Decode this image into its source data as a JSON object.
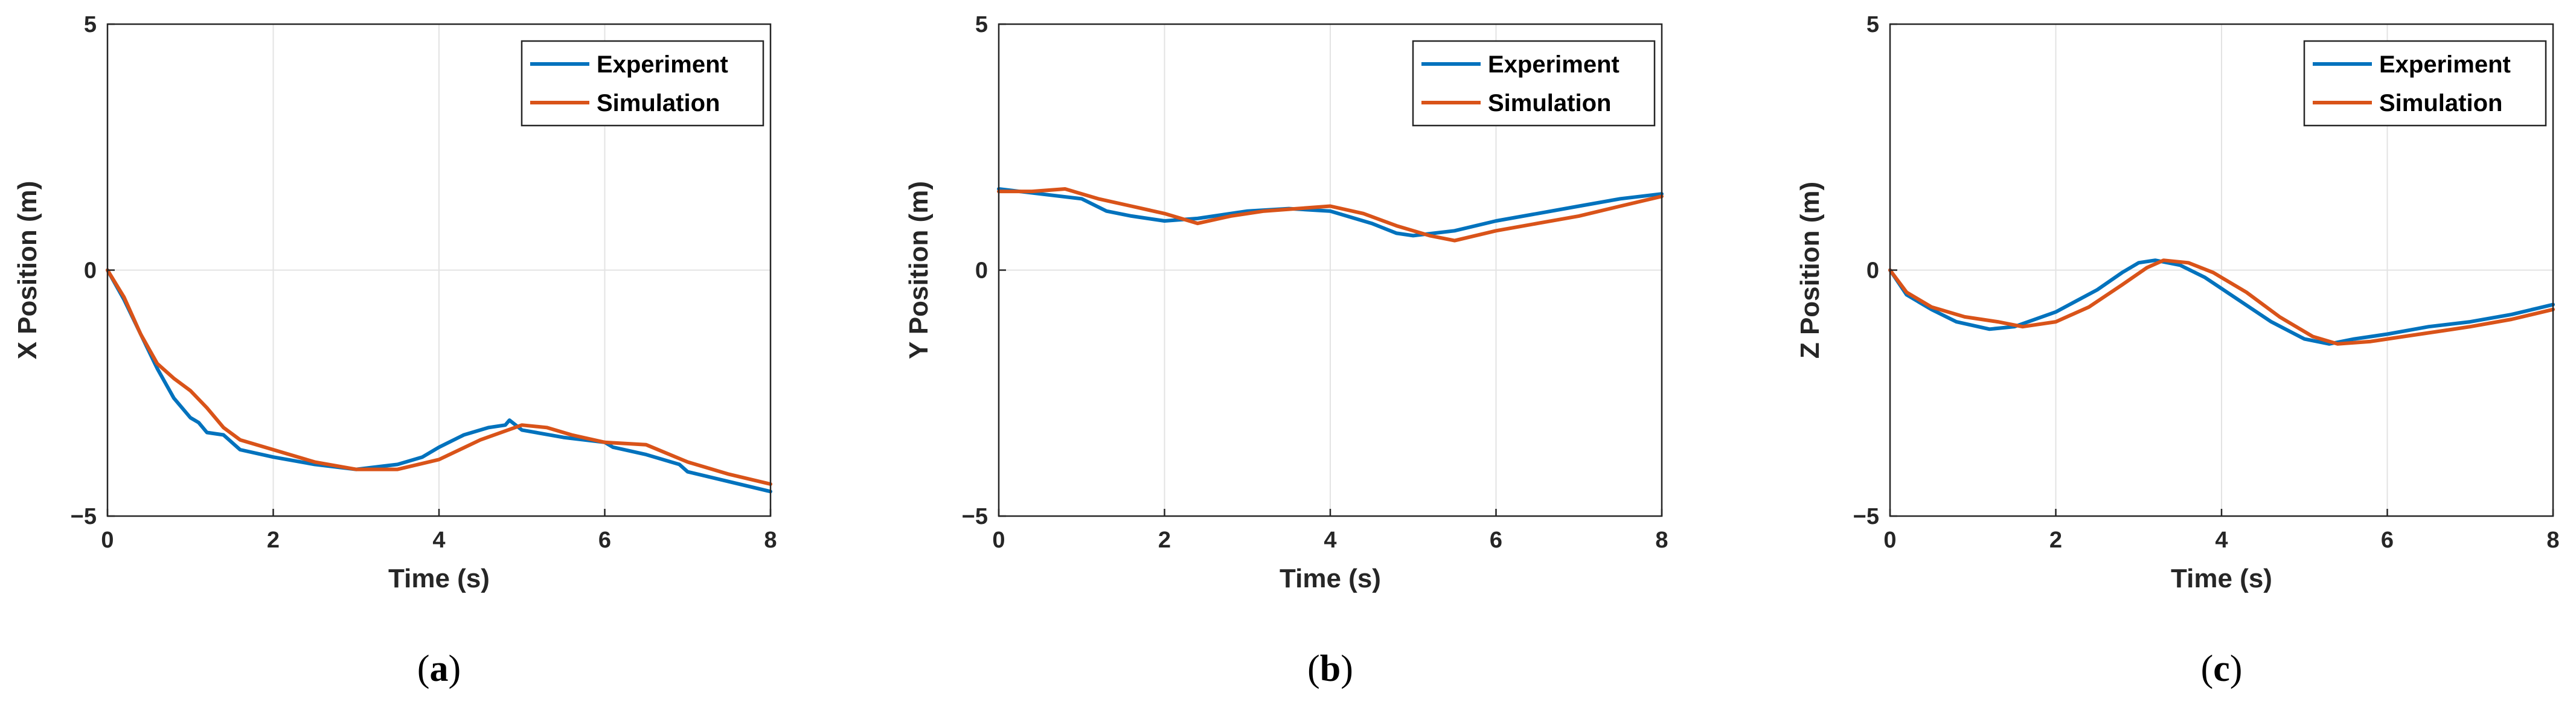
{
  "colors": {
    "experiment": "#0072BD",
    "simulation": "#D95319",
    "grid": "#e3e3e3",
    "axis": "#262626"
  },
  "chart_data": [
    {
      "type": "line",
      "caption": {
        "open": "(",
        "letter": "a",
        "close": ")"
      },
      "xlabel": "Time (s)",
      "ylabel": "X Position (m)",
      "xlim": [
        0,
        8
      ],
      "ylim": [
        -5,
        5
      ],
      "xticks": [
        0,
        2,
        4,
        6,
        8
      ],
      "xtick_labels": [
        "0",
        "2",
        "4",
        "6",
        "8"
      ],
      "yticks": [
        -5,
        0,
        5
      ],
      "ytick_labels": [
        "−5",
        "0",
        "5"
      ],
      "grid": true,
      "legend": "top-right",
      "series": [
        {
          "name": "Experiment",
          "x": [
            0,
            0.2,
            0.4,
            0.6,
            0.8,
            1.0,
            1.1,
            1.2,
            1.4,
            1.6,
            2.0,
            2.5,
            3.0,
            3.5,
            3.8,
            4.0,
            4.3,
            4.6,
            4.8,
            4.85,
            5.0,
            5.5,
            6.0,
            6.1,
            6.5,
            6.9,
            7.0,
            7.5,
            8.0
          ],
          "y": [
            0,
            -0.6,
            -1.3,
            -2.0,
            -2.6,
            -3.0,
            -3.1,
            -3.3,
            -3.35,
            -3.65,
            -3.8,
            -3.95,
            -4.05,
            -3.95,
            -3.8,
            -3.6,
            -3.35,
            -3.2,
            -3.15,
            -3.05,
            -3.25,
            -3.4,
            -3.5,
            -3.6,
            -3.75,
            -3.95,
            -4.1,
            -4.3,
            -4.5
          ]
        },
        {
          "name": "Simulation",
          "x": [
            0,
            0.2,
            0.4,
            0.6,
            0.8,
            1.0,
            1.2,
            1.4,
            1.6,
            2.0,
            2.5,
            3.0,
            3.5,
            4.0,
            4.5,
            5.0,
            5.3,
            5.6,
            6.0,
            6.5,
            7.0,
            7.5,
            8.0
          ],
          "y": [
            0,
            -0.55,
            -1.3,
            -1.9,
            -2.2,
            -2.45,
            -2.8,
            -3.2,
            -3.45,
            -3.65,
            -3.9,
            -4.05,
            -4.05,
            -3.85,
            -3.45,
            -3.15,
            -3.2,
            -3.35,
            -3.5,
            -3.55,
            -3.9,
            -4.15,
            -4.35
          ]
        }
      ]
    },
    {
      "type": "line",
      "caption": {
        "open": "(",
        "letter": "b",
        "close": ")"
      },
      "xlabel": "Time (s)",
      "ylabel": "Y Position (m)",
      "xlim": [
        0,
        8
      ],
      "ylim": [
        -5,
        5
      ],
      "xticks": [
        0,
        2,
        4,
        6,
        8
      ],
      "xtick_labels": [
        "0",
        "2",
        "4",
        "6",
        "8"
      ],
      "yticks": [
        -5,
        0,
        5
      ],
      "ytick_labels": [
        "−5",
        "0",
        "5"
      ],
      "grid": true,
      "legend": "top-right",
      "series": [
        {
          "name": "Experiment",
          "x": [
            0,
            0.5,
            1.0,
            1.3,
            1.6,
            2.0,
            2.4,
            3.0,
            3.5,
            4.0,
            4.5,
            4.8,
            5.0,
            5.5,
            6.0,
            6.5,
            7.0,
            7.5,
            8.0
          ],
          "y": [
            1.65,
            1.55,
            1.45,
            1.2,
            1.1,
            1.0,
            1.05,
            1.2,
            1.25,
            1.2,
            0.95,
            0.75,
            0.7,
            0.8,
            1.0,
            1.15,
            1.3,
            1.45,
            1.55
          ]
        },
        {
          "name": "Simulation",
          "x": [
            0,
            0.4,
            0.8,
            1.2,
            1.6,
            2.0,
            2.4,
            2.8,
            3.2,
            3.6,
            4.0,
            4.4,
            4.8,
            5.2,
            5.5,
            6.0,
            6.5,
            7.0,
            7.5,
            8.0
          ],
          "y": [
            1.6,
            1.6,
            1.65,
            1.45,
            1.3,
            1.15,
            0.95,
            1.1,
            1.2,
            1.25,
            1.3,
            1.15,
            0.9,
            0.7,
            0.6,
            0.8,
            0.95,
            1.1,
            1.3,
            1.5
          ]
        }
      ]
    },
    {
      "type": "line",
      "caption": {
        "open": "(",
        "letter": "c",
        "close": ")"
      },
      "xlabel": "Time (s)",
      "ylabel": "Z Position (m)",
      "xlim": [
        0,
        8
      ],
      "ylim": [
        -5,
        5
      ],
      "xticks": [
        0,
        2,
        4,
        6,
        8
      ],
      "xtick_labels": [
        "0",
        "2",
        "4",
        "6",
        "8"
      ],
      "yticks": [
        -5,
        0,
        5
      ],
      "ytick_labels": [
        "−5",
        "0",
        "5"
      ],
      "grid": true,
      "legend": "top-right",
      "series": [
        {
          "name": "Experiment",
          "x": [
            0,
            0.2,
            0.5,
            0.8,
            1.2,
            1.5,
            2.0,
            2.5,
            2.8,
            3.0,
            3.2,
            3.5,
            3.8,
            4.2,
            4.6,
            5.0,
            5.3,
            5.6,
            6.0,
            6.5,
            7.0,
            7.5,
            8.0
          ],
          "y": [
            0,
            -0.5,
            -0.8,
            -1.05,
            -1.2,
            -1.15,
            -0.85,
            -0.4,
            -0.05,
            0.15,
            0.2,
            0.1,
            -0.15,
            -0.6,
            -1.05,
            -1.4,
            -1.5,
            -1.4,
            -1.3,
            -1.15,
            -1.05,
            -0.9,
            -0.7
          ]
        },
        {
          "name": "Simulation",
          "x": [
            0,
            0.2,
            0.5,
            0.9,
            1.3,
            1.6,
            2.0,
            2.4,
            2.8,
            3.1,
            3.3,
            3.6,
            3.9,
            4.3,
            4.7,
            5.1,
            5.4,
            5.8,
            6.2,
            6.6,
            7.0,
            7.5,
            8.0
          ],
          "y": [
            0,
            -0.45,
            -0.75,
            -0.95,
            -1.05,
            -1.15,
            -1.05,
            -0.75,
            -0.3,
            0.05,
            0.2,
            0.15,
            -0.05,
            -0.45,
            -0.95,
            -1.35,
            -1.5,
            -1.45,
            -1.35,
            -1.25,
            -1.15,
            -1.0,
            -0.8
          ]
        }
      ]
    }
  ]
}
